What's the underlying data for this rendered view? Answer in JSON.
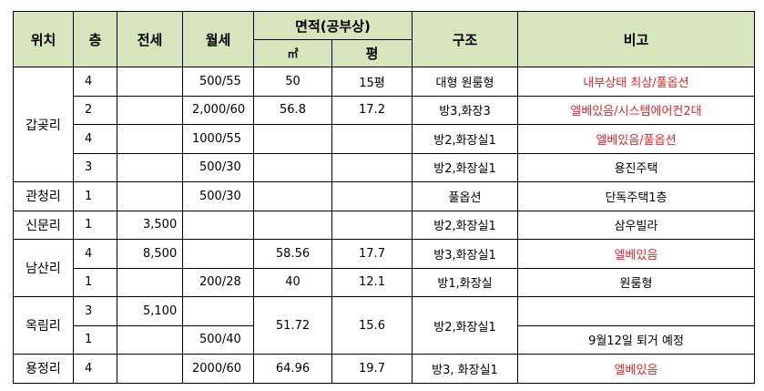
{
  "headers": {
    "location": "위치",
    "floor": "층",
    "jeonse": "전세",
    "wolse": "월세",
    "area": "면적(공부상)",
    "area_m2": "㎡",
    "area_pyeong": "평",
    "structure": "구조",
    "note": "비고"
  },
  "locations": [
    "갑곶리",
    "관청리",
    "신문리",
    "남산리",
    "옥림리",
    "용정리"
  ],
  "rows": [
    {
      "floor": "4",
      "jeonse": "",
      "wolse": "500/55",
      "m2": "50",
      "pyeong": "15평",
      "structure": "대형 원룸형",
      "note": "내부상태 최상/풀옵션"
    },
    {
      "floor": "2",
      "jeonse": "",
      "wolse": "2,000/60",
      "m2": "56.8",
      "pyeong": "17.2",
      "structure": "방3,화장3",
      "note": "엘베있음/시스템에어컨2대"
    },
    {
      "floor": "4",
      "jeonse": "",
      "wolse": "1000/55",
      "m2": "",
      "pyeong": "",
      "structure": "방2,화장실1",
      "note": "엘베있음/풀옵션"
    },
    {
      "floor": "3",
      "jeonse": "",
      "wolse": "500/30",
      "m2": "",
      "pyeong": "",
      "structure": "방2,화장실1",
      "note": "용진주택"
    },
    {
      "floor": "1",
      "jeonse": "",
      "wolse": "500/30",
      "m2": "",
      "pyeong": "",
      "structure": "풀옵션",
      "note": "단독주택1층"
    },
    {
      "floor": "1",
      "jeonse": "3,500",
      "wolse": "",
      "m2": "",
      "pyeong": "",
      "structure": "방2,화장실1",
      "note": "삼우빌라"
    },
    {
      "floor": "4",
      "jeonse": "8,500",
      "wolse": "",
      "m2": "58.56",
      "pyeong": "17.7",
      "structure": "방3,화장실1",
      "note": "엘베있음"
    },
    {
      "floor": "1",
      "jeonse": "",
      "wolse": "200/28",
      "m2": "40",
      "pyeong": "12.1",
      "structure": "방1,화장실",
      "note": "원룸형"
    },
    {
      "floor": "3",
      "jeonse": "5,100",
      "wolse": "",
      "m2": "51.72",
      "pyeong": "15.6",
      "structure": "방2,화장실1",
      "note": ""
    },
    {
      "floor": "1",
      "jeonse": "",
      "wolse": "500/40",
      "note": "9월12일 퇴거 예정"
    },
    {
      "floor": "4",
      "jeonse": "",
      "wolse": "2000/60",
      "m2": "64.96",
      "pyeong": "19.7",
      "structure": "방3, 화장실1",
      "note": "엘베있음"
    }
  ],
  "colors": {
    "header_bg": "#d8e4bc",
    "highlight_text": "#e0262b"
  }
}
